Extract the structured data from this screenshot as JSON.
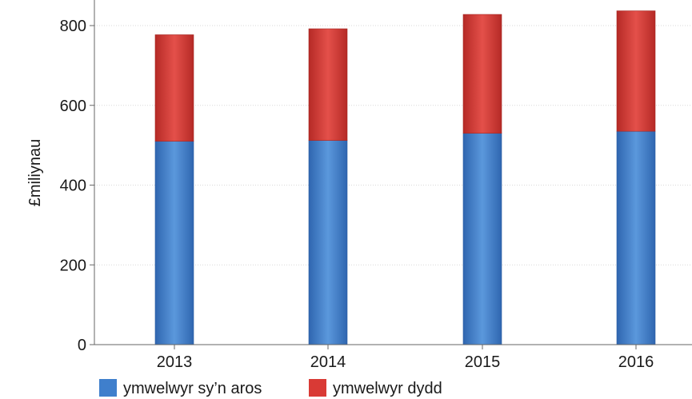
{
  "chart_data": {
    "type": "bar",
    "stacked": true,
    "categories": [
      "2013",
      "2014",
      "2015",
      "2016"
    ],
    "series": [
      {
        "name": "ymwelwyr sy’n aros",
        "values": [
          510,
          512,
          530,
          535
        ],
        "color": "#3f7fcc"
      },
      {
        "name": "ymwelwyr dydd",
        "values": [
          267,
          280,
          298,
          302
        ],
        "color": "#d93a35"
      }
    ],
    "ylabel": "£miliynau",
    "ylim": [
      0,
      800
    ],
    "yticks": [
      0,
      200,
      400,
      600,
      800
    ],
    "grid": true,
    "legend_position": "bottom-left"
  }
}
